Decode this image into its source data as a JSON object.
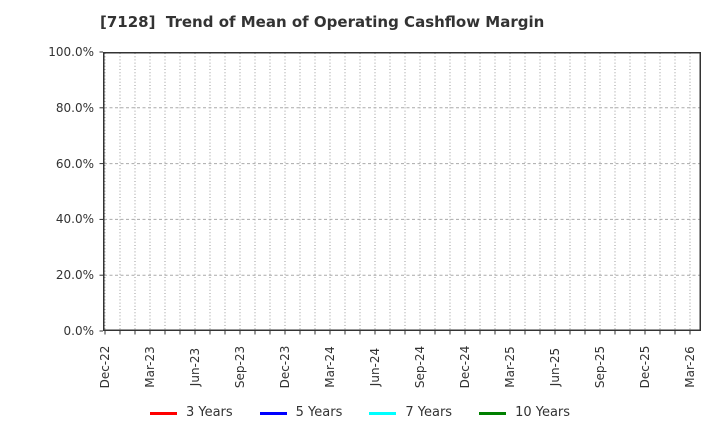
{
  "page": {
    "background": "#ffffff"
  },
  "chart_data": {
    "type": "line",
    "title": "[7128]  Trend of Mean of Operating Cashflow Margin",
    "title_color": "#333333",
    "x": {
      "tick_labels": [
        "Dec-22",
        "Mar-23",
        "Jun-23",
        "Sep-23",
        "Dec-23",
        "Mar-24",
        "Jun-24",
        "Sep-24",
        "Dec-24",
        "Mar-25",
        "Jun-25",
        "Sep-25",
        "Dec-25",
        "Mar-26"
      ],
      "label_every_n_months": 3,
      "minor_grid": "monthly",
      "months_total": 40,
      "label_rotation_deg": 90
    },
    "y": {
      "tick_labels": [
        "0.0%",
        "20.0%",
        "40.0%",
        "60.0%",
        "80.0%",
        "100.0%"
      ],
      "min": 0,
      "max": 100,
      "step": 20,
      "unit": "%"
    },
    "grid": {
      "vertical_style": "dotted",
      "vertical_color": "#999999",
      "horizontal_style": "dashed",
      "horizontal_color": "#aaaaaa",
      "frame_color": "#333333"
    },
    "series": [
      {
        "name": "3 Years",
        "color": "#ff0000",
        "values": []
      },
      {
        "name": "5 Years",
        "color": "#0000ff",
        "values": []
      },
      {
        "name": "7 Years",
        "color": "#00ffff",
        "values": []
      },
      {
        "name": "10 Years",
        "color": "#008000",
        "values": []
      }
    ],
    "plot_note": "no data lines visible in plot area (empty plot)"
  }
}
